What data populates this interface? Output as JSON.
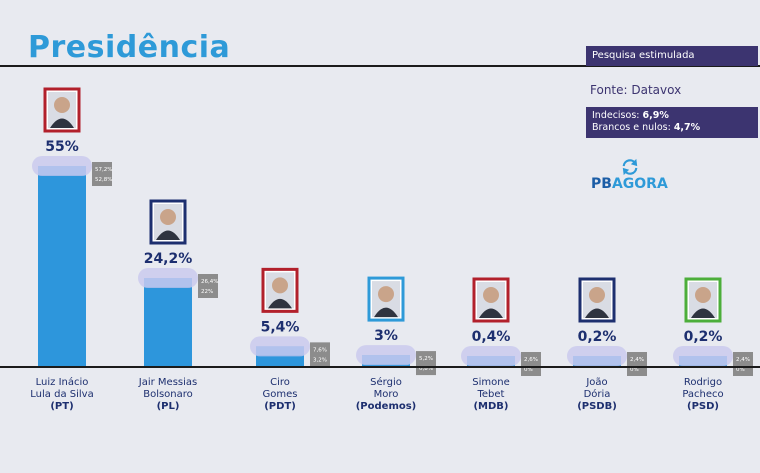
{
  "header": {
    "title": "Presidência",
    "survey_type": "Pesquisa estimulada",
    "source": "Fonte: Datavox",
    "undecided_label": "Indecisos: ",
    "undecided_value": "6,9%",
    "blank_label": "Brancos e nulos: ",
    "blank_value": "4,7%",
    "logo_pb": "PB",
    "logo_agora": "AGORA"
  },
  "colors": {
    "bar": "#2d96dc",
    "bar_top": "#6fb6ea",
    "margin_band": "#c7c5ee",
    "range_box": "#8c8c8c",
    "value_text": "#1d2f6f",
    "title": "#2e9ad8",
    "panel": "#3c3470"
  },
  "chart_data": {
    "type": "bar",
    "categories": [
      "Luiz Inácio Lula da Silva",
      "Jair Messias Bolsonaro",
      "Ciro Gomes",
      "Sérgio Moro",
      "Simone Tebet",
      "João Dória",
      "Rodrigo Pacheco"
    ],
    "label_lines": [
      [
        "Luiz Inácio",
        "Lula da Silva"
      ],
      [
        "Jair Messias",
        "Bolsonaro"
      ],
      [
        "Ciro",
        "Gomes"
      ],
      [
        "Sérgio",
        "Moro"
      ],
      [
        "Simone",
        "Tebet"
      ],
      [
        "João",
        "Dória"
      ],
      [
        "Rodrigo",
        "Pacheco"
      ]
    ],
    "parties": [
      "(PT)",
      "(PL)",
      "(PDT)",
      "(Podemos)",
      "(MDB)",
      "(PSDB)",
      "(PSD)"
    ],
    "values": [
      55,
      24.2,
      5.4,
      3,
      0.4,
      0.2,
      0.2
    ],
    "value_labels": [
      "55%",
      "24,2%",
      "5,4%",
      "3%",
      "0,4%",
      "0,2%",
      "0,2%"
    ],
    "range_high": [
      "57,2%",
      "26,4%",
      "7,6%",
      "5,2%",
      "2,6%",
      "2,4%",
      "2,4%"
    ],
    "range_low": [
      "52,8%",
      "22%",
      "3,2%",
      "0,8%",
      "0%",
      "0%",
      "0%"
    ],
    "photo_frame_colors": [
      "#b2202b",
      "#1d2f6f",
      "#b2202b",
      "#2e9ad8",
      "#b2202b",
      "#1d2f6f",
      "#4cae3a"
    ],
    "ylim": [
      0,
      60
    ]
  }
}
